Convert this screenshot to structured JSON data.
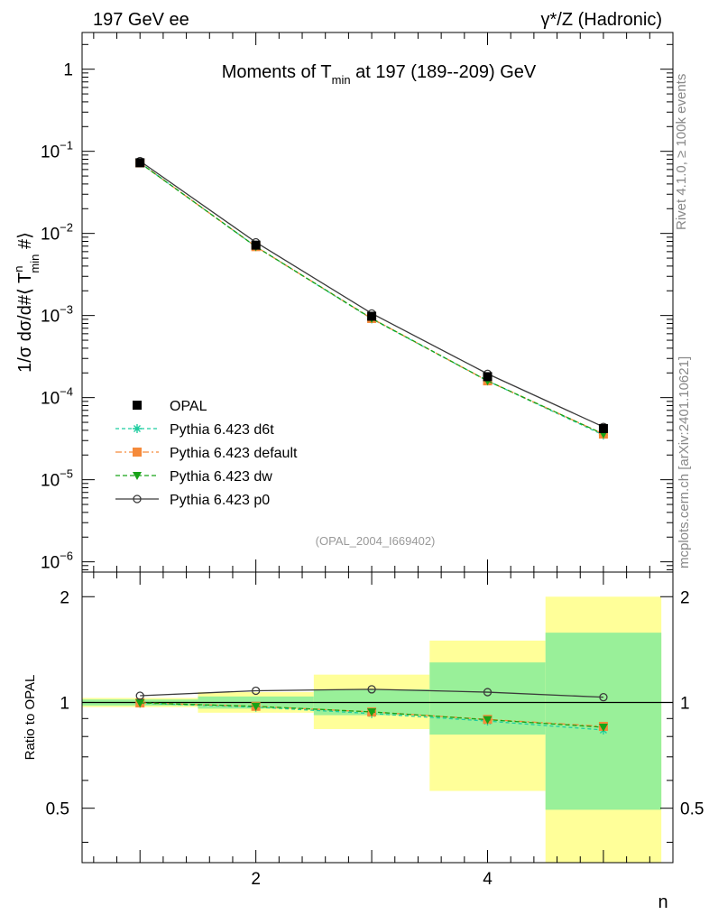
{
  "header": {
    "left": "197 GeV ee",
    "right": "γ*/Z (Hadronic)"
  },
  "side_labels": {
    "rivet": "Rivet 4.1.0, ≥ 100k events",
    "mcplots": "mcplots.cern.ch [arXiv:2401.10621]"
  },
  "chart_data": [
    {
      "type": "line",
      "panel": "main",
      "title": "Moments of T",
      "title_sub": "min",
      "title_rest": " at 197 (189--209) GeV",
      "watermark": "(OPAL_2004_I669402)",
      "ylabel": "1/σ  dσ/d#⟨ T",
      "ylabel_sup": "n",
      "ylabel_sub": "min",
      "ylabel_tail": " #⟩",
      "yscale": "log",
      "ylim": [
        7.5e-07,
        2.8
      ],
      "xlim": [
        0.5,
        5.6
      ],
      "y_ticks": [
        {
          "base": "10",
          "exp": "−6",
          "value": 1e-06
        },
        {
          "base": "10",
          "exp": "−5",
          "value": 1e-05
        },
        {
          "base": "10",
          "exp": "−4",
          "value": 0.0001
        },
        {
          "base": "10",
          "exp": "−3",
          "value": 0.001
        },
        {
          "base": "10",
          "exp": "−2",
          "value": 0.01
        },
        {
          "base": "10",
          "exp": "−1",
          "value": 0.1
        },
        {
          "base": "1",
          "exp": "",
          "value": 1
        }
      ],
      "x": [
        1,
        2,
        3,
        4,
        5
      ],
      "series": [
        {
          "name": "OPAL",
          "color": "#000000",
          "marker": "square",
          "values": [
            0.0725,
            0.0072,
            0.00098,
            0.00018,
            4.2e-05
          ]
        },
        {
          "name": "Pythia 6.423 d6t",
          "color": "#1fcda0",
          "marker": "star",
          "dash": "4,3",
          "values": [
            0.0722,
            0.0069,
            0.00091,
            0.00016,
            3.5e-05
          ]
        },
        {
          "name": "Pythia 6.423 default",
          "color": "#f58a3a",
          "marker": "square",
          "dash": "7,3,2,3",
          "values": [
            0.0722,
            0.0069,
            0.00092,
            0.00016,
            3.6e-05
          ]
        },
        {
          "name": "Pythia 6.423 dw",
          "color": "#17a317",
          "marker": "triangle-down",
          "dash": "5,3",
          "values": [
            0.0722,
            0.0069,
            0.00092,
            0.00016,
            3.6e-05
          ]
        },
        {
          "name": "Pythia 6.423 p0",
          "color": "#3a3a3a",
          "marker": "circle-open",
          "values": [
            0.076,
            0.0078,
            0.00106,
            0.000195,
            4.4e-05
          ]
        }
      ]
    },
    {
      "type": "line",
      "panel": "ratio",
      "ylabel": "Ratio to OPAL",
      "xlabel": "n",
      "yscale": "log",
      "ylim": [
        0.35,
        2.35
      ],
      "xlim": [
        0.5,
        5.6
      ],
      "y_ticks": [
        {
          "label": "0.5",
          "value": 0.5
        },
        {
          "label": "1",
          "value": 1
        },
        {
          "label": "2",
          "value": 2
        }
      ],
      "x_ticks": [
        {
          "label": "2",
          "value": 2
        },
        {
          "label": "4",
          "value": 4
        }
      ],
      "reference": 1,
      "bands": [
        {
          "x0": 0.5,
          "x1": 1.5,
          "inner": [
            0.98,
            1.02
          ],
          "outer": [
            0.97,
            1.03
          ]
        },
        {
          "x0": 1.5,
          "x1": 2.5,
          "inner": [
            0.96,
            1.04
          ],
          "outer": [
            0.935,
            1.07
          ]
        },
        {
          "x0": 2.5,
          "x1": 3.5,
          "inner": [
            0.92,
            1.09
          ],
          "outer": [
            0.84,
            1.2
          ]
        },
        {
          "x0": 3.5,
          "x1": 4.5,
          "inner": [
            0.81,
            1.3
          ],
          "outer": [
            0.56,
            1.5
          ]
        },
        {
          "x0": 4.5,
          "x1": 5.5,
          "inner": [
            0.495,
            1.58
          ],
          "outer": [
            0.35,
            2.0
          ]
        }
      ],
      "band_colors": {
        "inner": "#99f099",
        "outer": "#ffff99"
      },
      "series": [
        {
          "name": "Pythia 6.423 d6t",
          "color": "#1fcda0",
          "marker": "star",
          "dash": "4,3",
          "values": [
            0.995,
            0.97,
            0.93,
            0.885,
            0.835
          ]
        },
        {
          "name": "Pythia 6.423 default",
          "color": "#f58a3a",
          "marker": "square",
          "dash": "7,3,2,3",
          "values": [
            0.997,
            0.975,
            0.94,
            0.895,
            0.855
          ]
        },
        {
          "name": "Pythia 6.423 dw",
          "color": "#17a317",
          "marker": "triangle-down",
          "dash": "5,3",
          "values": [
            0.997,
            0.975,
            0.94,
            0.893,
            0.85
          ]
        },
        {
          "name": "Pythia 6.423 p0",
          "color": "#3a3a3a",
          "marker": "circle-open",
          "values": [
            1.045,
            1.08,
            1.09,
            1.07,
            1.035
          ]
        }
      ]
    }
  ]
}
